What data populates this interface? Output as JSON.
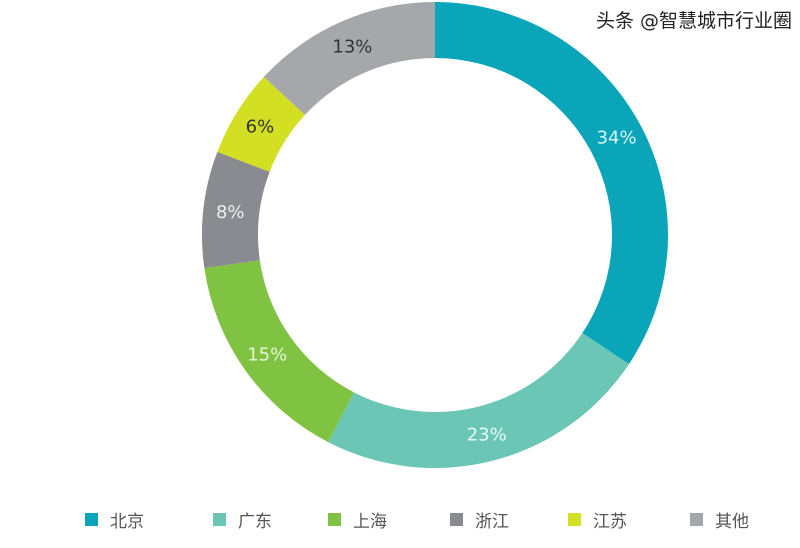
{
  "chart_data": {
    "type": "pie",
    "donut": true,
    "start": "top, clockwise",
    "categories": [
      "北京",
      "广东",
      "上海",
      "浙江",
      "江苏",
      "其他"
    ],
    "values": [
      34,
      23,
      15,
      8,
      6,
      13
    ],
    "labels": [
      "34%",
      "23%",
      "15%",
      "8%",
      "6%",
      "13%"
    ],
    "colors": [
      "#0aa5b9",
      "#6bc6b6",
      "#80c242",
      "#8a8b90",
      "#d3df22",
      "#a6a7ab"
    ],
    "label_colors": [
      "#d8f4f8",
      "#eafaf6",
      "#e6f5d6",
      "#eeeeee",
      "#333333",
      "#333333"
    ],
    "legend_placement": "bottom"
  },
  "watermark": "头条 @智慧城市行业圈"
}
